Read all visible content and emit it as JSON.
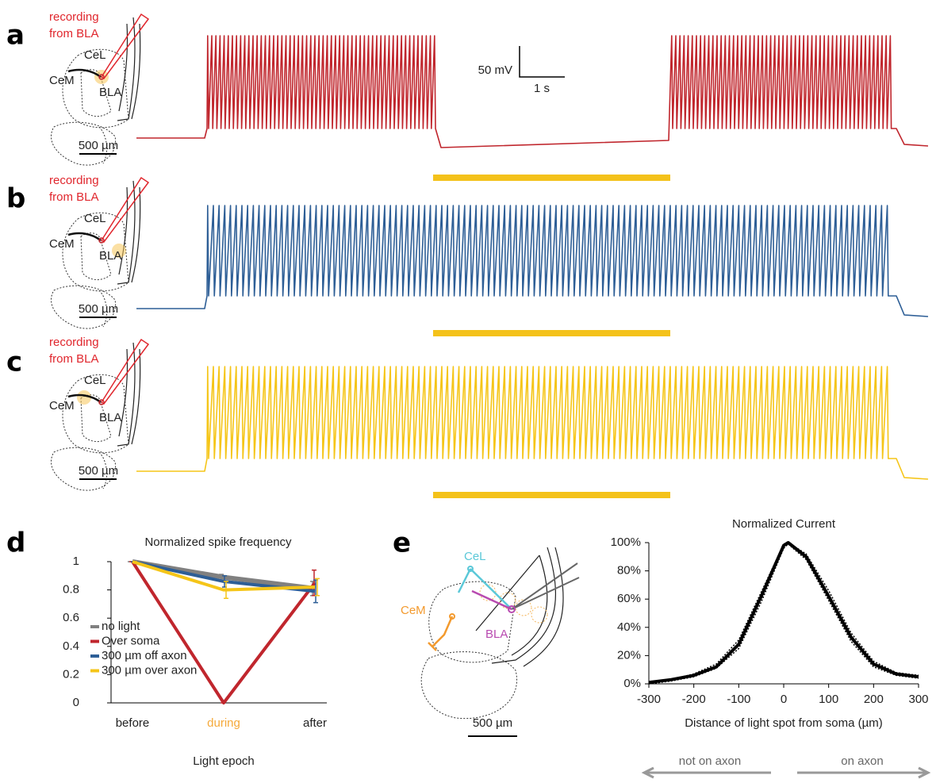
{
  "panel_labels": [
    "a",
    "b",
    "c",
    "d",
    "e"
  ],
  "recording_label": [
    "recording",
    "from BLA"
  ],
  "regions": [
    "CeL",
    "CeM",
    "BLA"
  ],
  "scale_label": "500 µm",
  "scale_bar": {
    "voltage": "50 mV",
    "time": "1 s"
  },
  "trace_colors": [
    "#c0262d",
    "#2d5e96",
    "#f5c518"
  ],
  "light_color": "#f4c21a",
  "axon_arrows": [
    "not on axon",
    "on axon"
  ],
  "chart_data": [
    {
      "type": "line",
      "title": "Normalized spike frequency",
      "x_label": "Light epoch",
      "categories": [
        "before",
        "during",
        "after"
      ],
      "highlight": {
        "index": 1,
        "color": "#f5a93a"
      },
      "series": [
        {
          "name": "no light",
          "color": "#808080",
          "values": [
            1,
            0.89,
            0.81
          ],
          "errors": [
            0,
            0.02,
            0.05
          ]
        },
        {
          "name": "Over soma",
          "color": "#c0262d",
          "values": [
            1,
            0,
            0.85
          ],
          "errors": [
            0,
            0,
            0.09
          ]
        },
        {
          "name": "300 µm off axon",
          "color": "#2d5e96",
          "values": [
            1,
            0.86,
            0.79
          ],
          "errors": [
            0,
            0.04,
            0.08
          ]
        },
        {
          "name": "300 µm over axon",
          "color": "#f5c518",
          "values": [
            1,
            0.8,
            0.82
          ],
          "errors": [
            0,
            0.06,
            0.06
          ]
        }
      ],
      "ylim": [
        0,
        1
      ],
      "yticks": [
        0,
        0.2,
        0.4,
        0.6,
        0.8,
        1
      ],
      "legend": "lower left"
    },
    {
      "type": "line",
      "title": "Normalized Current",
      "x_label": "Distance of light spot from soma (µm)",
      "x": [
        -300,
        -250,
        -200,
        -150,
        -100,
        -50,
        0,
        10,
        50,
        100,
        150,
        200,
        250,
        300
      ],
      "series": [
        {
          "color": "#000000",
          "values": [
            1,
            3,
            6,
            12,
            28,
            62,
            98,
            100,
            90,
            62,
            33,
            14,
            7,
            5
          ]
        },
        {
          "color": "#000000",
          "style": "dotted",
          "values": [
            1,
            3,
            7,
            14,
            31,
            65,
            99,
            100,
            92,
            66,
            36,
            16,
            8,
            6
          ]
        },
        {
          "color": "#000000",
          "style": "dotted",
          "values": [
            0,
            2,
            5,
            11,
            25,
            58,
            96,
            99,
            88,
            59,
            30,
            12,
            6,
            4
          ]
        }
      ],
      "xlim": [
        -300,
        300
      ],
      "ylim": [
        0,
        100
      ],
      "xticks": [
        -300,
        -200,
        -100,
        0,
        100,
        200,
        300
      ],
      "yticks": [
        {
          "value": 0,
          "label": "0%"
        },
        {
          "value": 20,
          "label": "20%"
        },
        {
          "value": 40,
          "label": "40%"
        },
        {
          "value": 60,
          "label": "60%"
        },
        {
          "value": 80,
          "label": "80%"
        },
        {
          "value": 100,
          "label": "100%"
        }
      ]
    }
  ]
}
